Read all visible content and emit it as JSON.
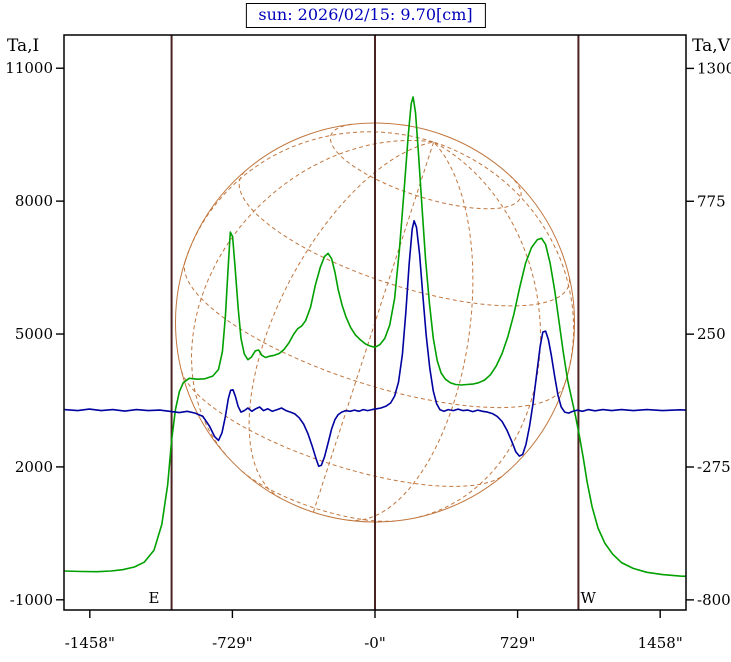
{
  "title": "sun: 2026/02/15: 9.70[cm]",
  "colors": {
    "title_text": "#0000bb",
    "intensity_curve": "#00a000",
    "polarization_curve": "#0000a0",
    "sun_grid": "#c1773f",
    "limb_lines": "#4a2222",
    "frame": "#000000",
    "text": "#000000"
  },
  "chart_data": {
    "type": "line",
    "title": "sun: 2026/02/15: 9.70[cm]",
    "grid": false,
    "legend": null,
    "x_axis": {
      "unit": "arcsec",
      "tick_labels": [
        "-1458\"",
        "-729\"",
        "-0\"",
        "729\"",
        "1458\""
      ],
      "tick_values": [
        -1458,
        -729,
        0,
        729,
        1458
      ],
      "range": [
        -1590,
        1590
      ]
    },
    "left_axis": {
      "title": "Ta,I",
      "tick_labels": [
        "11000",
        "8000",
        "5000",
        "2000",
        "-1000"
      ],
      "tick_values": [
        11000,
        8000,
        5000,
        2000,
        -1000
      ],
      "range": [
        -1230,
        11750
      ]
    },
    "right_axis": {
      "title": "Ta,V",
      "tick_labels": [
        "1300",
        "775",
        "250",
        "-275",
        "-800"
      ],
      "tick_values": [
        1300,
        775,
        250,
        -275,
        -800
      ],
      "range": [
        -840,
        1432
      ]
    },
    "annotations": {
      "east_label": "E",
      "west_label": "W",
      "east_label_x": -1130,
      "west_label_x": 1090,
      "east_limb_x": -1040,
      "west_limb_x": 1040,
      "center_x": 0
    },
    "sun_overlay": {
      "radius_arcsec": 1020,
      "grid_tilt_deg": 18,
      "grid_roll_deg": -18,
      "lat_lines": [
        -60,
        -30,
        0,
        30,
        60
      ],
      "lon_lines": [
        -90,
        -60,
        -30,
        0,
        30,
        60,
        90
      ]
    },
    "series": [
      {
        "name": "Ta,I intensity scan",
        "axis": "left",
        "color_key": "intensity_curve",
        "points": [
          [
            -1590,
            -350
          ],
          [
            -1500,
            -360
          ],
          [
            -1420,
            -365
          ],
          [
            -1350,
            -350
          ],
          [
            -1290,
            -320
          ],
          [
            -1230,
            -260
          ],
          [
            -1180,
            -150
          ],
          [
            -1130,
            120
          ],
          [
            -1090,
            700
          ],
          [
            -1060,
            1600
          ],
          [
            -1040,
            2600
          ],
          [
            -1020,
            3300
          ],
          [
            -1000,
            3700
          ],
          [
            -980,
            3900
          ],
          [
            -950,
            4000
          ],
          [
            -910,
            3980
          ],
          [
            -870,
            3990
          ],
          [
            -830,
            4050
          ],
          [
            -800,
            4200
          ],
          [
            -780,
            4600
          ],
          [
            -765,
            5400
          ],
          [
            -752,
            6400
          ],
          [
            -740,
            7300
          ],
          [
            -728,
            7200
          ],
          [
            -715,
            6500
          ],
          [
            -700,
            5600
          ],
          [
            -685,
            4900
          ],
          [
            -668,
            4550
          ],
          [
            -650,
            4420
          ],
          [
            -632,
            4480
          ],
          [
            -612,
            4620
          ],
          [
            -595,
            4640
          ],
          [
            -578,
            4520
          ],
          [
            -560,
            4470
          ],
          [
            -540,
            4500
          ],
          [
            -515,
            4520
          ],
          [
            -490,
            4560
          ],
          [
            -465,
            4650
          ],
          [
            -440,
            4800
          ],
          [
            -415,
            5000
          ],
          [
            -395,
            5120
          ],
          [
            -375,
            5180
          ],
          [
            -355,
            5300
          ],
          [
            -330,
            5600
          ],
          [
            -305,
            6100
          ],
          [
            -280,
            6500
          ],
          [
            -258,
            6750
          ],
          [
            -240,
            6820
          ],
          [
            -222,
            6700
          ],
          [
            -205,
            6400
          ],
          [
            -188,
            6000
          ],
          [
            -168,
            5650
          ],
          [
            -148,
            5380
          ],
          [
            -125,
            5150
          ],
          [
            -100,
            4980
          ],
          [
            -75,
            4870
          ],
          [
            -50,
            4780
          ],
          [
            -25,
            4730
          ],
          [
            0,
            4700
          ],
          [
            25,
            4760
          ],
          [
            50,
            4900
          ],
          [
            75,
            5200
          ],
          [
            100,
            5800
          ],
          [
            125,
            6900
          ],
          [
            150,
            8300
          ],
          [
            170,
            9500
          ],
          [
            185,
            10200
          ],
          [
            195,
            10350
          ],
          [
            207,
            10000
          ],
          [
            222,
            9100
          ],
          [
            240,
            7900
          ],
          [
            258,
            6700
          ],
          [
            278,
            5700
          ],
          [
            298,
            4900
          ],
          [
            318,
            4400
          ],
          [
            338,
            4120
          ],
          [
            360,
            3980
          ],
          [
            385,
            3900
          ],
          [
            412,
            3860
          ],
          [
            440,
            3850
          ],
          [
            470,
            3860
          ],
          [
            500,
            3870
          ],
          [
            530,
            3900
          ],
          [
            560,
            3960
          ],
          [
            590,
            4080
          ],
          [
            620,
            4280
          ],
          [
            650,
            4560
          ],
          [
            680,
            4950
          ],
          [
            710,
            5450
          ],
          [
            740,
            6050
          ],
          [
            770,
            6600
          ],
          [
            800,
            6950
          ],
          [
            830,
            7130
          ],
          [
            852,
            7160
          ],
          [
            872,
            7020
          ],
          [
            895,
            6600
          ],
          [
            918,
            6000
          ],
          [
            940,
            5300
          ],
          [
            962,
            4600
          ],
          [
            985,
            3950
          ],
          [
            1005,
            3550
          ],
          [
            1025,
            3150
          ],
          [
            1045,
            2700
          ],
          [
            1065,
            2200
          ],
          [
            1085,
            1650
          ],
          [
            1110,
            1100
          ],
          [
            1140,
            620
          ],
          [
            1175,
            280
          ],
          [
            1215,
            30
          ],
          [
            1260,
            -160
          ],
          [
            1320,
            -290
          ],
          [
            1390,
            -380
          ],
          [
            1470,
            -430
          ],
          [
            1560,
            -465
          ],
          [
            1590,
            -470
          ]
        ]
      },
      {
        "name": "Ta,V polarization scan",
        "axis": "right",
        "color_key": "polarization_curve",
        "points": [
          [
            -1590,
            -48
          ],
          [
            -1520,
            -52
          ],
          [
            -1460,
            -46
          ],
          [
            -1400,
            -52
          ],
          [
            -1340,
            -48
          ],
          [
            -1280,
            -54
          ],
          [
            -1220,
            -48
          ],
          [
            -1160,
            -52
          ],
          [
            -1100,
            -50
          ],
          [
            -1050,
            -55
          ],
          [
            -1000,
            -60
          ],
          [
            -960,
            -55
          ],
          [
            -920,
            -62
          ],
          [
            -880,
            -75
          ],
          [
            -845,
            -115
          ],
          [
            -820,
            -155
          ],
          [
            -800,
            -170
          ],
          [
            -782,
            -140
          ],
          [
            -765,
            -75
          ],
          [
            -750,
            -5
          ],
          [
            -738,
            28
          ],
          [
            -726,
            30
          ],
          [
            -714,
            5
          ],
          [
            -700,
            -35
          ],
          [
            -685,
            -58
          ],
          [
            -668,
            -52
          ],
          [
            -650,
            -42
          ],
          [
            -630,
            -55
          ],
          [
            -610,
            -45
          ],
          [
            -590,
            -38
          ],
          [
            -570,
            -52
          ],
          [
            -548,
            -45
          ],
          [
            -525,
            -55
          ],
          [
            -500,
            -48
          ],
          [
            -478,
            -42
          ],
          [
            -455,
            -52
          ],
          [
            -432,
            -58
          ],
          [
            -410,
            -65
          ],
          [
            -388,
            -80
          ],
          [
            -365,
            -105
          ],
          [
            -342,
            -145
          ],
          [
            -320,
            -195
          ],
          [
            -302,
            -240
          ],
          [
            -288,
            -272
          ],
          [
            -274,
            -268
          ],
          [
            -258,
            -235
          ],
          [
            -240,
            -180
          ],
          [
            -222,
            -125
          ],
          [
            -205,
            -88
          ],
          [
            -188,
            -68
          ],
          [
            -170,
            -58
          ],
          [
            -150,
            -52
          ],
          [
            -128,
            -55
          ],
          [
            -105,
            -50
          ],
          [
            -82,
            -55
          ],
          [
            -60,
            -48
          ],
          [
            -38,
            -52
          ],
          [
            -15,
            -48
          ],
          [
            8,
            -45
          ],
          [
            30,
            -42
          ],
          [
            55,
            -35
          ],
          [
            80,
            -22
          ],
          [
            100,
            5
          ],
          [
            120,
            60
          ],
          [
            140,
            170
          ],
          [
            158,
            340
          ],
          [
            175,
            530
          ],
          [
            190,
            665
          ],
          [
            200,
            698
          ],
          [
            212,
            672
          ],
          [
            228,
            565
          ],
          [
            245,
            400
          ],
          [
            262,
            245
          ],
          [
            280,
            115
          ],
          [
            298,
            25
          ],
          [
            315,
            -25
          ],
          [
            332,
            -48
          ],
          [
            352,
            -55
          ],
          [
            375,
            -48
          ],
          [
            400,
            -52
          ],
          [
            425,
            -46
          ],
          [
            450,
            -52
          ],
          [
            475,
            -50
          ],
          [
            500,
            -56
          ],
          [
            525,
            -50
          ],
          [
            550,
            -55
          ],
          [
            575,
            -58
          ],
          [
            600,
            -64
          ],
          [
            625,
            -75
          ],
          [
            650,
            -95
          ],
          [
            675,
            -130
          ],
          [
            700,
            -175
          ],
          [
            720,
            -215
          ],
          [
            738,
            -232
          ],
          [
            755,
            -225
          ],
          [
            772,
            -185
          ],
          [
            790,
            -115
          ],
          [
            808,
            -25
          ],
          [
            826,
            90
          ],
          [
            844,
            200
          ],
          [
            858,
            258
          ],
          [
            872,
            262
          ],
          [
            886,
            230
          ],
          [
            902,
            165
          ],
          [
            918,
            85
          ],
          [
            935,
            10
          ],
          [
            952,
            -38
          ],
          [
            970,
            -58
          ],
          [
            990,
            -62
          ],
          [
            1012,
            -55
          ],
          [
            1035,
            -50
          ],
          [
            1060,
            -55
          ],
          [
            1090,
            -48
          ],
          [
            1125,
            -53
          ],
          [
            1165,
            -48
          ],
          [
            1210,
            -52
          ],
          [
            1260,
            -48
          ],
          [
            1320,
            -52
          ],
          [
            1390,
            -48
          ],
          [
            1470,
            -52
          ],
          [
            1560,
            -49
          ],
          [
            1590,
            -50
          ]
        ]
      }
    ]
  }
}
